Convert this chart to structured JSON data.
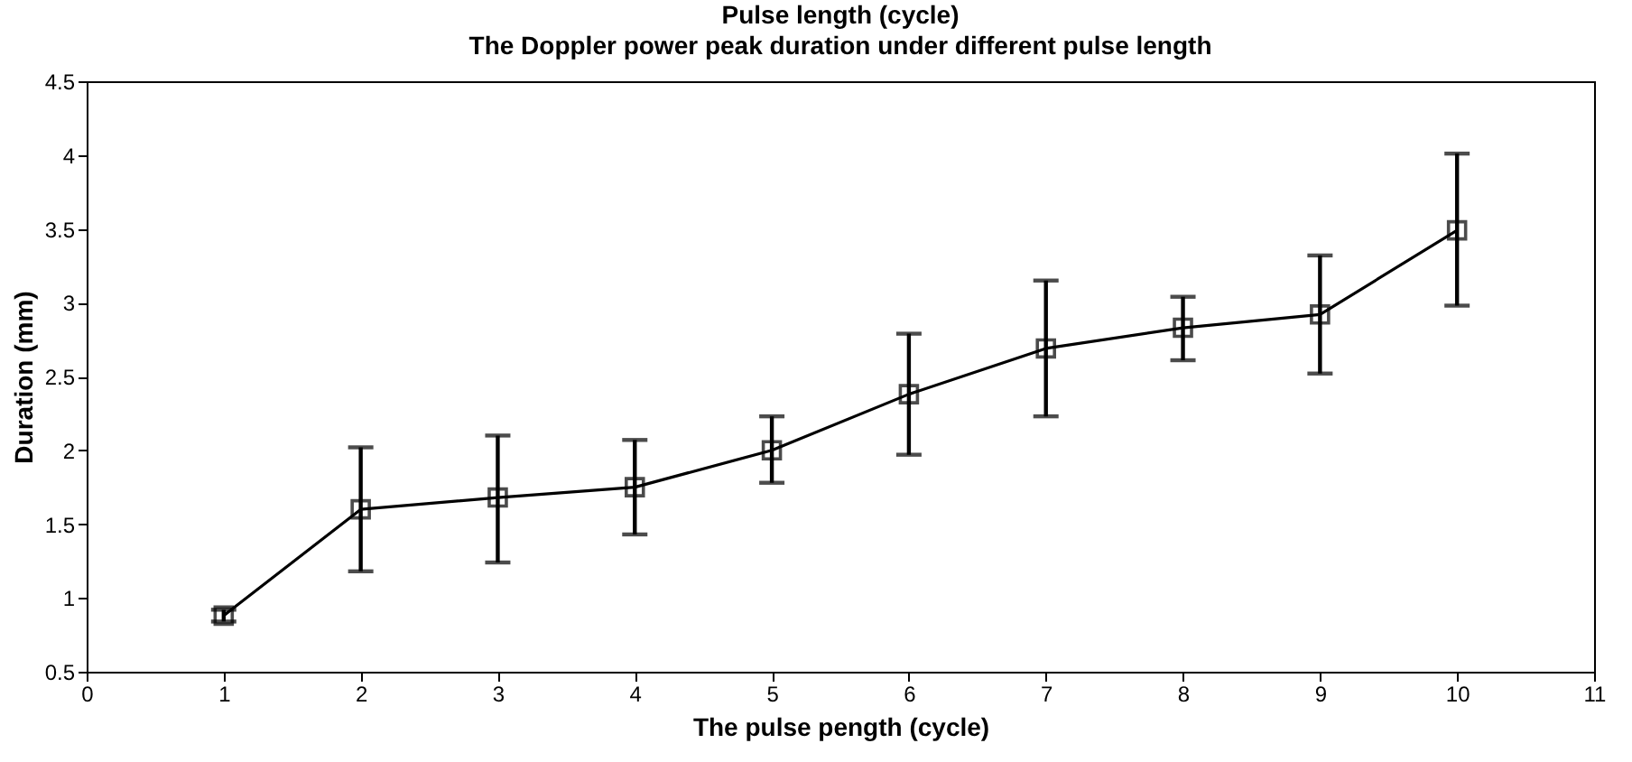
{
  "chart_data": {
    "type": "line",
    "title": "Pulse length (cycle)",
    "subtitle": "The Doppler power peak duration under different pulse length",
    "xlabel": "The pulse pength (cycle)",
    "ylabel": "Duration (mm)",
    "x": [
      1,
      2,
      3,
      4,
      5,
      6,
      7,
      8,
      9,
      10
    ],
    "series": [
      {
        "color": "#000000",
        "values": [
          0.88,
          1.6,
          1.68,
          1.75,
          2.0,
          2.38,
          2.69,
          2.83,
          2.92,
          3.49
        ],
        "errors": [
          [
            0.84,
            0.92
          ],
          [
            1.18,
            2.02
          ],
          [
            1.24,
            2.1
          ],
          [
            1.43,
            2.07
          ],
          [
            1.78,
            2.23
          ],
          [
            1.97,
            2.79
          ],
          [
            2.23,
            3.15
          ],
          [
            2.61,
            3.04
          ],
          [
            2.52,
            3.32
          ],
          [
            2.98,
            4.01
          ]
        ]
      }
    ],
    "xlim": [
      0,
      11
    ],
    "xticks": [
      0,
      1,
      2,
      3,
      4,
      5,
      6,
      7,
      8,
      9,
      10,
      11
    ],
    "ylim": [
      0.5,
      4.5
    ],
    "yticks": [
      0.5,
      1,
      1.5,
      2,
      2.5,
      3,
      3.5,
      4,
      4.5
    ],
    "grid": false,
    "marker": "square",
    "line_style": "solid"
  }
}
